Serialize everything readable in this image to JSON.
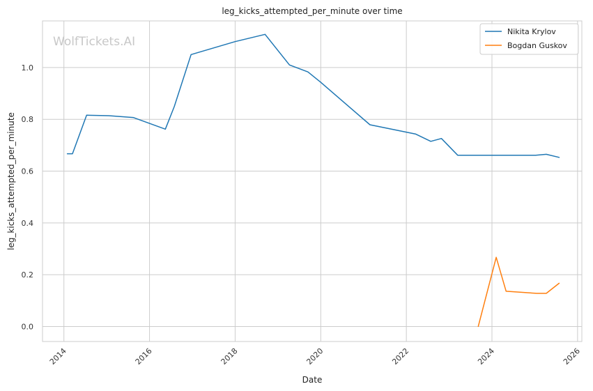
{
  "chart_data": {
    "type": "line",
    "title": "leg_kicks_attempted_per_minute over time",
    "xlabel": "Date",
    "ylabel": "leg_kicks_attempted_per_minute",
    "watermark": "WolfTickets.AI",
    "xlim": [
      2013.5,
      2026.1
    ],
    "ylim": [
      -0.058,
      1.18
    ],
    "xticks": [
      2014,
      2016,
      2018,
      2020,
      2022,
      2024,
      2026
    ],
    "yticks": [
      0.0,
      0.2,
      0.4,
      0.6,
      0.8,
      1.0
    ],
    "ytick_labels": [
      "0.0",
      "0.2",
      "0.4",
      "0.6",
      "0.8",
      "1.0"
    ],
    "grid": true,
    "legend_position": "top-right",
    "series": [
      {
        "name": "Nikita Krylov",
        "color": "#1f77b4",
        "x": [
          2014.08,
          2014.2,
          2014.53,
          2015.05,
          2015.62,
          2016.37,
          2016.58,
          2016.97,
          2018.0,
          2018.7,
          2019.27,
          2019.7,
          2020.0,
          2021.15,
          2022.22,
          2022.57,
          2022.82,
          2023.2,
          2024.0,
          2025.02,
          2025.27,
          2025.57
        ],
        "y": [
          0.667,
          0.667,
          0.816,
          0.814,
          0.807,
          0.762,
          0.85,
          1.05,
          1.1,
          1.128,
          1.01,
          0.983,
          0.943,
          0.779,
          0.743,
          0.715,
          0.726,
          0.661,
          0.661,
          0.661,
          0.665,
          0.653
        ]
      },
      {
        "name": "Bogdan Guskov",
        "color": "#ff7f0e",
        "x": [
          2023.68,
          2024.1,
          2024.33,
          2025.05,
          2025.27,
          2025.57
        ],
        "y": [
          0.0,
          0.267,
          0.136,
          0.128,
          0.128,
          0.167
        ]
      }
    ]
  }
}
